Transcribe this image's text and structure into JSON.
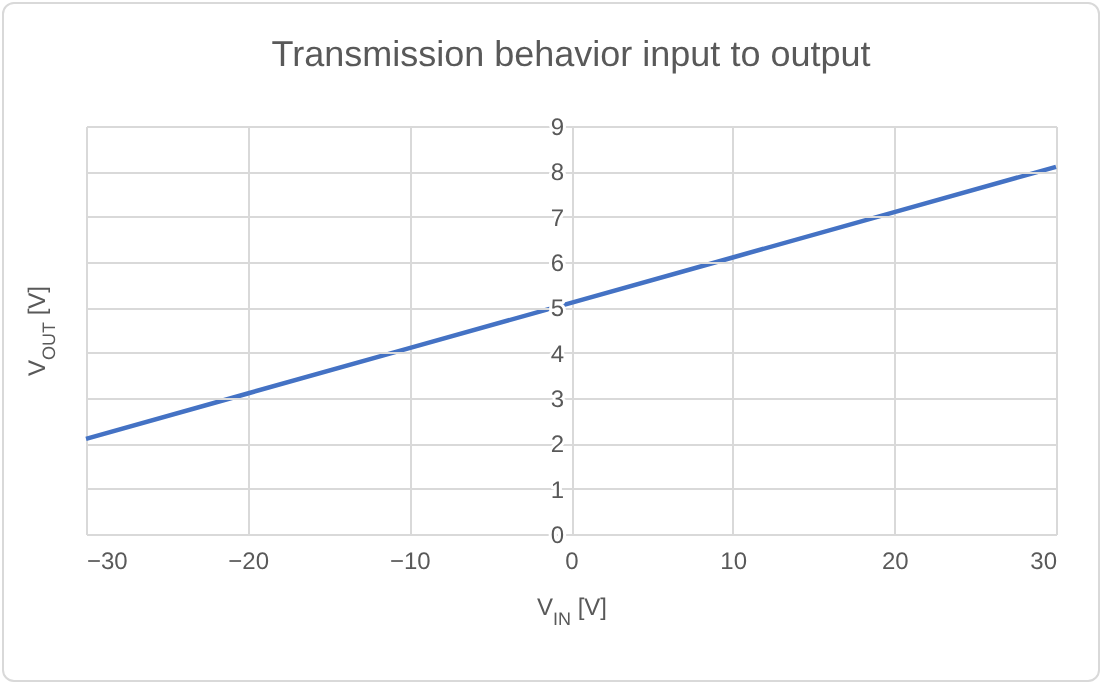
{
  "chart_data": {
    "type": "line",
    "title": "Transmission behavior input to output",
    "xlabel": "V$_{IN}$ [V]",
    "ylabel": "V$_{OUT}$ [V]",
    "x": [
      -30,
      -20,
      -10,
      0,
      10,
      20,
      30
    ],
    "series": [
      {
        "color": "#4472c4",
        "values": [
          2.1,
          3.1,
          4.1,
          5.1,
          6.1,
          7.1,
          8.1
        ]
      }
    ],
    "xlim": [
      -30,
      30
    ],
    "xticks": [
      -30,
      -20,
      -10,
      0,
      10,
      20,
      30
    ],
    "ylim": [
      0,
      9
    ],
    "yticks": [
      0,
      1,
      2,
      3,
      4,
      5,
      6,
      7,
      8,
      9
    ],
    "grid": true,
    "legend": false,
    "marker": "none",
    "line_style": "solid"
  }
}
